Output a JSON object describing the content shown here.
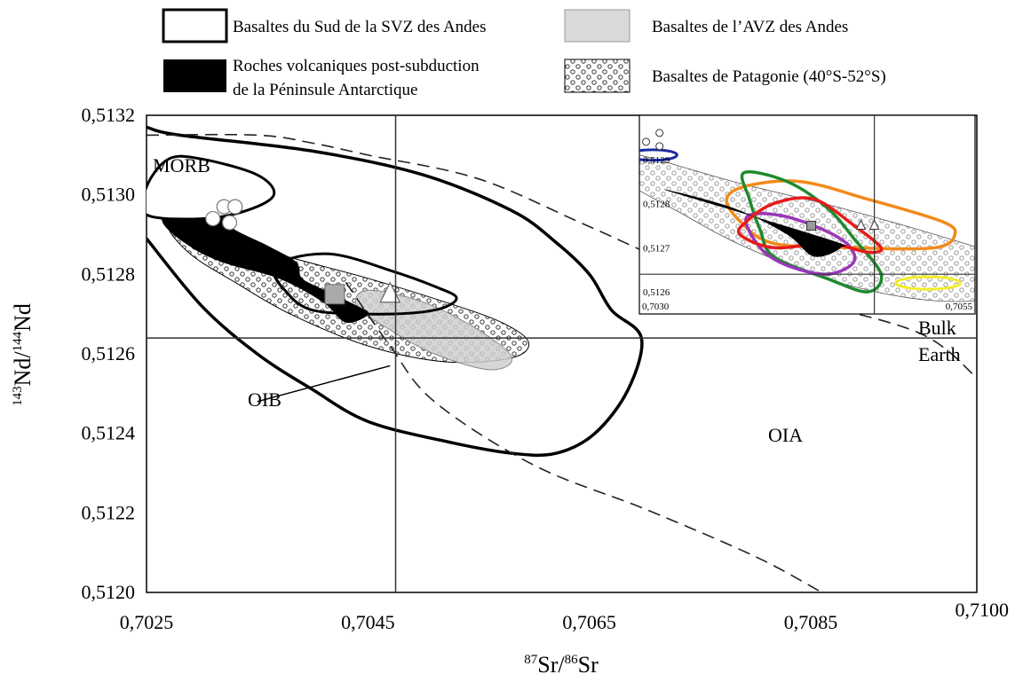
{
  "legend": {
    "items": [
      {
        "label": "Basaltes du Sud de la SVZ des Andes",
        "swatch": "outline"
      },
      {
        "label": "Basaltes de l’AVZ des Andes",
        "swatch": "grey"
      },
      {
        "label_lines": [
          "Roches volcaniques post-subduction",
          "de la Péninsule Antarctique"
        ],
        "swatch": "black"
      },
      {
        "label": "Basaltes de Patagonie (40°S-52°S)",
        "swatch": "dotted"
      }
    ]
  },
  "chart_data": [
    {
      "type": "scatter",
      "xlabel": {
        "sup1": "87",
        "base1": "Sr/",
        "sup2": "86",
        "base2": "Sr"
      },
      "ylabel": {
        "sup1": "143",
        "base1": "Nd/",
        "sup2": "144",
        "base2": "Nd"
      },
      "xlim": [
        0.7025,
        0.71
      ],
      "ylim": [
        0.512,
        0.5132
      ],
      "x_ticks": [
        0.7025,
        0.7045,
        0.7065,
        0.7085,
        0.71
      ],
      "x_tick_labels": [
        "0,7025",
        "0,7045",
        "0,7065",
        "0,7085",
        "0,7100"
      ],
      "y_ticks": [
        0.5132,
        0.513,
        0.5128,
        0.5126,
        0.5124,
        0.5122,
        0.512
      ],
      "y_tick_labels": [
        "0,5132",
        "0,5130",
        "0,5128",
        "0,5126",
        "0,5124",
        "0,5122",
        "0,5120"
      ],
      "bulk_earth": {
        "x": 0.70475,
        "y": 0.51264,
        "label_lines": [
          "Bulk",
          "Earth"
        ]
      },
      "region_labels": [
        "MORB",
        "OIB",
        "OIA"
      ],
      "fields": {
        "morb": [
          [
            0.7025,
            0.51302
          ],
          [
            0.7027,
            0.51309
          ],
          [
            0.703,
            0.51309
          ],
          [
            0.7035,
            0.51305
          ],
          [
            0.70365,
            0.513
          ],
          [
            0.7034,
            0.51296
          ],
          [
            0.703,
            0.51294
          ],
          [
            0.7025,
            0.51295
          ]
        ],
        "oib": [
          [
            0.7025,
            0.51317
          ],
          [
            0.7028,
            0.51315
          ],
          [
            0.704,
            0.51311
          ],
          [
            0.705,
            0.51305
          ],
          [
            0.7058,
            0.51296
          ],
          [
            0.7062,
            0.51288
          ],
          [
            0.7065,
            0.5128
          ],
          [
            0.7067,
            0.51271
          ],
          [
            0.70697,
            0.51264
          ],
          [
            0.70685,
            0.51251
          ],
          [
            0.70655,
            0.5124
          ],
          [
            0.7062,
            0.51235
          ],
          [
            0.7058,
            0.51235
          ],
          [
            0.7052,
            0.51238
          ],
          [
            0.7045,
            0.51243
          ],
          [
            0.704,
            0.51251
          ],
          [
            0.7035,
            0.5126
          ],
          [
            0.703,
            0.51272
          ],
          [
            0.7025,
            0.51289
          ]
        ],
        "oia_upper": [
          [
            0.7025,
            0.51315
          ],
          [
            0.7035,
            0.51315
          ],
          [
            0.704,
            0.51313
          ],
          [
            0.7045,
            0.5131
          ],
          [
            0.7055,
            0.51304
          ],
          [
            0.7065,
            0.51292
          ],
          [
            0.7075,
            0.5128
          ],
          [
            0.7085,
            0.51273
          ],
          [
            0.7095,
            0.51265
          ],
          [
            0.71,
            0.51254
          ]
        ],
        "oia_lower": [
          [
            0.7043,
            0.51278
          ],
          [
            0.7047,
            0.51262
          ],
          [
            0.7051,
            0.51248
          ],
          [
            0.706,
            0.51232
          ],
          [
            0.707,
            0.51221
          ],
          [
            0.708,
            0.51209
          ],
          [
            0.7086,
            0.512
          ]
        ],
        "patagonia": [
          [
            0.7027,
            0.51292
          ],
          [
            0.703,
            0.51291
          ],
          [
            0.7037,
            0.51285
          ],
          [
            0.7045,
            0.51279
          ],
          [
            0.7052,
            0.51273
          ],
          [
            0.7057,
            0.51268
          ],
          [
            0.70595,
            0.51263
          ],
          [
            0.7058,
            0.51259
          ],
          [
            0.7052,
            0.51258
          ],
          [
            0.7045,
            0.51262
          ],
          [
            0.7038,
            0.5127
          ],
          [
            0.7033,
            0.51278
          ],
          [
            0.7029,
            0.51285
          ]
        ],
        "svz_sud": [
          [
            0.7038,
            0.51284
          ],
          [
            0.7042,
            0.51285
          ],
          [
            0.7047,
            0.51281
          ],
          [
            0.7051,
            0.51277
          ],
          [
            0.7053,
            0.51274
          ],
          [
            0.7051,
            0.51271
          ],
          [
            0.7046,
            0.5127
          ],
          [
            0.704,
            0.51271
          ],
          [
            0.70375,
            0.51276
          ],
          [
            0.70365,
            0.51281
          ]
        ],
        "avz": [
          [
            0.7045,
            0.51276
          ],
          [
            0.705,
            0.51273
          ],
          [
            0.7055,
            0.51266
          ],
          [
            0.7058,
            0.51259
          ],
          [
            0.7056,
            0.51256
          ],
          [
            0.7051,
            0.5126
          ],
          [
            0.7047,
            0.51266
          ],
          [
            0.7044,
            0.51272
          ]
        ],
        "antarctic": [
          [
            0.7027,
            0.51298
          ],
          [
            0.7028,
            0.513
          ],
          [
            0.7031,
            0.51298
          ],
          [
            0.70325,
            0.51292
          ],
          [
            0.7036,
            0.51287
          ],
          [
            0.70385,
            0.51283
          ],
          [
            0.7039,
            0.51279
          ],
          [
            0.7041,
            0.51276
          ],
          [
            0.7044,
            0.51272
          ],
          [
            0.7045,
            0.5127
          ],
          [
            0.7043,
            0.51268
          ],
          [
            0.7041,
            0.51273
          ],
          [
            0.7037,
            0.51279
          ],
          [
            0.7032,
            0.51283
          ],
          [
            0.7029,
            0.51287
          ],
          [
            0.70265,
            0.51293
          ]
        ]
      },
      "points": {
        "circles": [
          [
            0.7031,
            0.51294
          ],
          [
            0.70325,
            0.51293
          ],
          [
            0.7032,
            0.51297
          ],
          [
            0.7033,
            0.51297
          ]
        ],
        "square": [
          0.7042,
          0.51275
        ],
        "triangle": [
          0.7047,
          0.51275
        ]
      },
      "oib_pointer": {
        "from": [
          0.7035,
          0.51248
        ],
        "to": [
          0.7047,
          0.51257
        ]
      }
    },
    {
      "type": "scatter",
      "x_tick_labels": [
        "0,7030",
        "0,7055"
      ],
      "y_tick_labels": [
        "0,5129",
        "0,5128",
        "0,5127",
        "0,5126"
      ],
      "xlim": [
        0.703,
        0.7055
      ],
      "ylim": [
        0.51255,
        0.513
      ],
      "x_ticks": [
        0.703,
        0.7055
      ],
      "y_ticks": [
        0.5129,
        0.5128,
        0.5127,
        0.5126
      ],
      "bulk_earth": {
        "x": 0.70475,
        "y": 0.51264
      },
      "series_colors": {
        "blue": "#1a2aa0",
        "orange": "#f28a1a",
        "green": "#1e8a2e",
        "purple": "#9a36b8",
        "red": "#e81a1a",
        "yellow": "#f2ec2a"
      },
      "outlines": {
        "blue": {
          "cx": 0.7031,
          "cy": 0.51291,
          "rx": 0.00018,
          "ry": 1.2e-05
        },
        "yellow": {
          "cx": 0.70515,
          "cy": 0.51262,
          "rx": 0.00024,
          "ry": 1.4e-05
        },
        "orange": [
          [
            0.7038,
            0.51284
          ],
          [
            0.7042,
            0.51285
          ],
          [
            0.7047,
            0.51281
          ],
          [
            0.70525,
            0.51276
          ],
          [
            0.70535,
            0.51273
          ],
          [
            0.7052,
            0.5127
          ],
          [
            0.7046,
            0.5127
          ],
          [
            0.704,
            0.51271
          ],
          [
            0.70375,
            0.51276
          ],
          [
            0.70365,
            0.51281
          ]
        ],
        "green": [
          [
            0.70378,
            0.51287
          ],
          [
            0.7041,
            0.51285
          ],
          [
            0.7044,
            0.51279
          ],
          [
            0.7046,
            0.51272
          ],
          [
            0.7048,
            0.51264
          ],
          [
            0.7047,
            0.5126
          ],
          [
            0.7044,
            0.51263
          ],
          [
            0.704,
            0.51268
          ],
          [
            0.7039,
            0.51274
          ],
          [
            0.70382,
            0.51281
          ]
        ],
        "purple": [
          [
            0.7038,
            0.51277
          ],
          [
            0.7041,
            0.51277
          ],
          [
            0.7045,
            0.51272
          ],
          [
            0.7046,
            0.51267
          ],
          [
            0.7044,
            0.51264
          ],
          [
            0.7041,
            0.51266
          ],
          [
            0.7039,
            0.5127
          ]
        ],
        "red": [
          [
            0.7038,
            0.51276
          ],
          [
            0.704,
            0.5128
          ],
          [
            0.7043,
            0.51281
          ],
          [
            0.7046,
            0.51275
          ],
          [
            0.7048,
            0.5127
          ],
          [
            0.7047,
            0.51269
          ],
          [
            0.7044,
            0.51271
          ],
          [
            0.704,
            0.5127
          ],
          [
            0.70375,
            0.51273
          ]
        ]
      },
      "points": {
        "circles": [
          [
            0.70305,
            0.51294
          ],
          [
            0.70315,
            0.51293
          ],
          [
            0.70315,
            0.51296
          ]
        ],
        "square": [
          0.70428,
          0.51275
        ],
        "triangles": [
          [
            0.70465,
            0.51275
          ],
          [
            0.70475,
            0.51275
          ]
        ]
      }
    }
  ]
}
